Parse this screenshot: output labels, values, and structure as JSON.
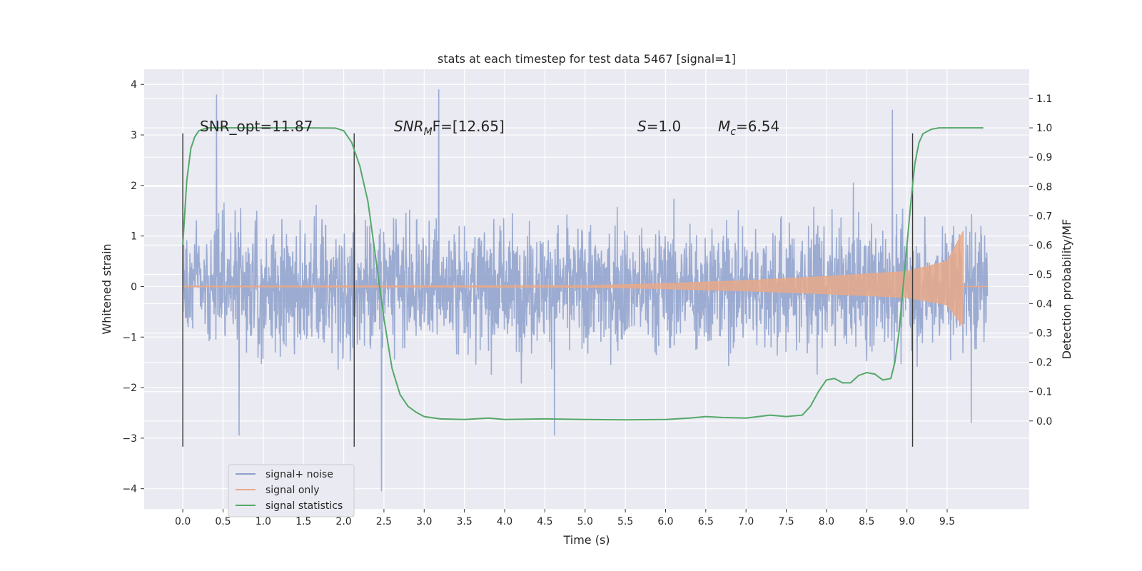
{
  "chart_data": {
    "type": "line",
    "title": "stats at each timestep for test data 5467 [signal=1]",
    "xlabel": "Time (s)",
    "ylabel": "Whitened strain",
    "ylabel_right": "Detection probability/MF",
    "xlim": [
      -0.48,
      10.52
    ],
    "ylim": [
      -4.4,
      4.3
    ],
    "ylim_right": [
      -0.3,
      1.2
    ],
    "xticks": [
      "0.0",
      "0.5",
      "1.0",
      "1.5",
      "2.0",
      "2.5",
      "3.0",
      "3.5",
      "4.0",
      "4.5",
      "5.0",
      "5.5",
      "6.0",
      "6.5",
      "7.0",
      "7.5",
      "8.0",
      "8.5",
      "9.0",
      "9.5"
    ],
    "yticks": [
      "4",
      "3",
      "2",
      "1",
      "0",
      "−1",
      "−2",
      "−3",
      "−4"
    ],
    "yticks_right": [
      "1.1",
      "1.0",
      "0.9",
      "0.8",
      "0.7",
      "0.6",
      "0.5",
      "0.4",
      "0.3",
      "0.2",
      "0.1",
      "0.0"
    ],
    "grid": true,
    "legend_position": "lower-left",
    "vertical_lines": [
      0.0,
      2.13,
      9.07
    ],
    "vertical_line_range": [
      -3.17,
      3.03
    ],
    "annotations": {
      "snr_opt": "SNR_opt=11.87",
      "snr_mf_base": "SNR",
      "snr_mf_sub": "M",
      "snr_mf_rest": "F=[12.65]",
      "s_base": "S",
      "s_rest": "=1.0",
      "mc_base": "M",
      "mc_sub": "c",
      "mc_rest": "=6.54"
    },
    "series": [
      {
        "name": "signal+ noise",
        "color": "#8da0cb",
        "axis": "left",
        "style": "noise",
        "t_range": [
          0.0,
          10.0
        ],
        "spikes": [
          [
            0.42,
            3.8
          ],
          [
            3.18,
            3.9
          ],
          [
            2.47,
            -4.05
          ],
          [
            8.82,
            3.5
          ],
          [
            0.7,
            -2.95
          ],
          [
            4.62,
            -2.95
          ],
          [
            9.8,
            -2.7
          ]
        ]
      },
      {
        "name": "signal only",
        "color": "#e8a98a",
        "axis": "left",
        "style": "chirp",
        "amplitude_points": [
          [
            0.0,
            0.01
          ],
          [
            5.0,
            0.02
          ],
          [
            6.0,
            0.06
          ],
          [
            7.0,
            0.12
          ],
          [
            8.0,
            0.2
          ],
          [
            9.0,
            0.3
          ],
          [
            9.5,
            0.5
          ],
          [
            9.7,
            1.1
          ]
        ],
        "end": 9.7
      },
      {
        "name": "signal statistics",
        "color": "#55a868",
        "axis": "right",
        "x": [
          0.0,
          0.05,
          0.1,
          0.15,
          0.2,
          0.3,
          0.5,
          1.0,
          1.5,
          1.9,
          2.0,
          2.1,
          2.2,
          2.3,
          2.4,
          2.5,
          2.6,
          2.7,
          2.8,
          2.9,
          3.0,
          3.2,
          3.5,
          3.8,
          4.0,
          4.5,
          5.0,
          5.5,
          6.0,
          6.3,
          6.5,
          6.7,
          7.0,
          7.3,
          7.5,
          7.7,
          7.8,
          7.9,
          8.0,
          8.1,
          8.2,
          8.3,
          8.4,
          8.5,
          8.6,
          8.7,
          8.8,
          8.85,
          8.9,
          8.95,
          9.0,
          9.05,
          9.1,
          9.15,
          9.2,
          9.3,
          9.4,
          9.5,
          9.7,
          9.95
        ],
        "values": [
          0.6,
          0.82,
          0.93,
          0.97,
          0.99,
          1.0,
          1.0,
          1.0,
          1.0,
          0.999,
          0.99,
          0.95,
          0.87,
          0.75,
          0.55,
          0.35,
          0.18,
          0.09,
          0.05,
          0.03,
          0.015,
          0.007,
          0.005,
          0.01,
          0.005,
          0.007,
          0.005,
          0.004,
          0.005,
          0.01,
          0.015,
          0.012,
          0.01,
          0.02,
          0.015,
          0.02,
          0.05,
          0.1,
          0.14,
          0.145,
          0.13,
          0.13,
          0.155,
          0.165,
          0.16,
          0.14,
          0.145,
          0.2,
          0.3,
          0.45,
          0.6,
          0.75,
          0.88,
          0.95,
          0.98,
          0.995,
          1.0,
          1.0,
          1.0,
          1.0
        ]
      }
    ]
  }
}
